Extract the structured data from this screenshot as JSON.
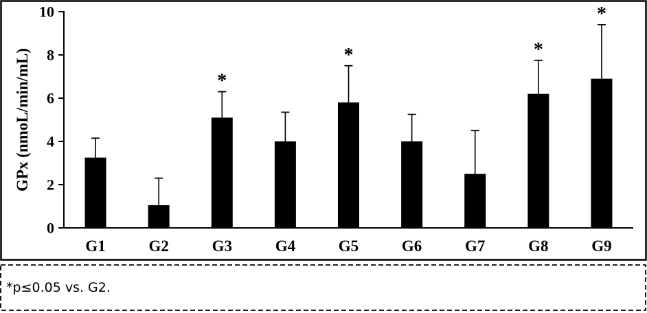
{
  "chart_data": {
    "type": "bar",
    "title": "",
    "xlabel": "",
    "ylabel": "GPx (nmoL/min/mL)",
    "categories": [
      "G1",
      "G2",
      "G3",
      "G4",
      "G5",
      "G6",
      "G7",
      "G8",
      "G9"
    ],
    "values": [
      3.25,
      1.05,
      5.1,
      4.0,
      5.8,
      4.0,
      2.5,
      6.2,
      6.9
    ],
    "error_bars_upper": [
      0.9,
      1.25,
      1.2,
      1.35,
      1.7,
      1.25,
      2.0,
      1.55,
      2.5
    ],
    "significant": [
      false,
      false,
      true,
      false,
      true,
      false,
      false,
      true,
      true
    ],
    "significance_marker": "*",
    "yticks": [
      "0",
      "2",
      "4",
      "6",
      "8",
      "10"
    ],
    "ylim": [
      0,
      10
    ],
    "grid": false,
    "legend": false,
    "bar_color": "#000000",
    "axis_color": "#000000",
    "background_color": "#ffffff"
  },
  "footnote": {
    "text": "*p≤0.05 vs. G2."
  }
}
